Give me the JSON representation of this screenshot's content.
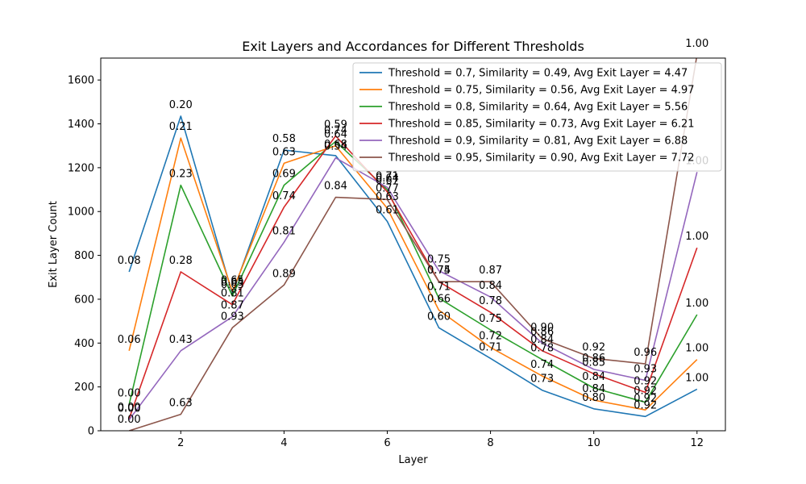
{
  "chart_data": {
    "type": "line",
    "title": "Exit Layers and Accordances for Different Thresholds",
    "xlabel": "Layer",
    "ylabel": "Exit Layer Count",
    "xlim": [
      0.45,
      12.55
    ],
    "ylim": [
      0,
      1700
    ],
    "xticks": [
      2,
      4,
      6,
      8,
      10,
      12
    ],
    "yticks": [
      0,
      200,
      400,
      600,
      800,
      1000,
      1200,
      1400,
      1600
    ],
    "grid": false,
    "legend_position": "top-right",
    "x": [
      1,
      2,
      3,
      4,
      5,
      6,
      7,
      8,
      9,
      10,
      11,
      12
    ],
    "series": [
      {
        "name": "Threshold = 0.7, Similarity = 0.49, Avg Exit Layer = 4.47",
        "color": "#1f77b4",
        "values": [
          725,
          1435,
          625,
          1280,
          1255,
          955,
          470,
          330,
          185,
          100,
          65,
          190
        ],
        "labels": [
          "0.08",
          "0.20",
          "0.65",
          "0.58",
          "0.68",
          "0.61",
          "0.60",
          "0.71",
          "0.73",
          "0.80",
          "0.92",
          "1.00"
        ]
      },
      {
        "name": "Threshold = 0.75, Similarity = 0.56, Avg Exit Layer = 4.97",
        "color": "#ff7f0e",
        "values": [
          365,
          1335,
          635,
          1220,
          1300,
          1015,
          550,
          380,
          250,
          140,
          95,
          325
        ],
        "labels": [
          "0.06",
          "0.21",
          "0.65",
          "0.63",
          "0.64",
          "0.63",
          "0.66",
          "0.72",
          "0.74",
          "0.84",
          "0.92",
          "1.00"
        ]
      },
      {
        "name": "Threshold = 0.8, Similarity = 0.64, Avg Exit Layer = 5.56",
        "color": "#2ca02c",
        "values": [
          120,
          1120,
          615,
          1120,
          1320,
          1100,
          605,
          460,
          325,
          195,
          130,
          530
        ],
        "labels": [
          "0.00",
          "0.23",
          "0.63",
          "0.69",
          "0.74",
          "0.64",
          "0.71",
          "0.75",
          "0.78",
          "0.84",
          "0.92",
          "1.00"
        ]
      },
      {
        "name": "Threshold = 0.85, Similarity = 0.73, Avg Exit Layer = 6.21",
        "color": "#d62728",
        "values": [
          55,
          725,
          575,
          1020,
          1345,
          1090,
          680,
          540,
          365,
          260,
          175,
          835
        ],
        "labels": [
          "0.00",
          "0.28",
          "0.81",
          "0.74",
          "0.59",
          "0.67",
          "0.74",
          "0.78",
          "0.84",
          "0.85",
          "0.92",
          "1.00"
        ]
      },
      {
        "name": "Threshold = 0.9, Similarity = 0.81, Avg Exit Layer = 6.88",
        "color": "#9467bd",
        "values": [
          50,
          365,
          520,
          860,
          1245,
          1110,
          730,
          610,
          400,
          280,
          230,
          1180
        ],
        "labels": [
          "0.00",
          "0.43",
          "0.87",
          "0.81",
          "0.54",
          "0.71",
          "0.75",
          "0.84",
          "0.86",
          "0.86",
          "0.93",
          "1.00"
        ]
      },
      {
        "name": "Threshold = 0.95, Similarity = 0.90, Avg Exit Layer = 7.72",
        "color": "#8c564b",
        "values": [
          0,
          75,
          470,
          665,
          1065,
          1055,
          680,
          680,
          420,
          330,
          305,
          1715
        ],
        "labels": [
          "0.00",
          "0.63",
          "0.93",
          "0.89",
          "0.84",
          "0.77",
          "0.75",
          "0.87",
          "0.90",
          "0.92",
          "0.96",
          "1.00"
        ]
      }
    ]
  }
}
